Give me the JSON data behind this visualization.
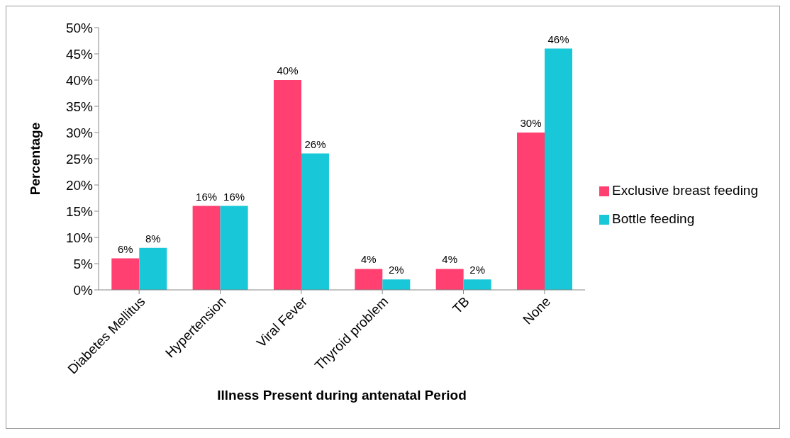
{
  "chart_data": {
    "type": "bar",
    "xlabel": "Illness Present during antenatal Period",
    "ylabel": "Percentage",
    "categories": [
      "Diabetes Mellitus",
      "Hypertension",
      "Viral Fever",
      "Thyroid problem",
      "TB",
      "None"
    ],
    "series": [
      {
        "name": "Exclusive breast feeding",
        "color": "#ff4070",
        "values": [
          6,
          16,
          40,
          4,
          4,
          30
        ],
        "value_labels": [
          "6%",
          "16%",
          "40%",
          "4%",
          "4%",
          "30%"
        ]
      },
      {
        "name": "Bottle feeding",
        "color": "#18c8d8",
        "values": [
          8,
          16,
          26,
          2,
          2,
          46
        ],
        "value_labels": [
          "8%",
          "16%",
          "26%",
          "2%",
          "2%",
          "46%"
        ]
      }
    ],
    "ylim": [
      0,
      50
    ],
    "yticks": [
      {
        "value": 0,
        "label": "0%"
      },
      {
        "value": 5,
        "label": "5%"
      },
      {
        "value": 10,
        "label": "10%"
      },
      {
        "value": 15,
        "label": "15%"
      },
      {
        "value": 20,
        "label": "20%"
      },
      {
        "value": 25,
        "label": "25%"
      },
      {
        "value": 30,
        "label": "30%"
      },
      {
        "value": 35,
        "label": "35%"
      },
      {
        "value": 40,
        "label": "40%"
      },
      {
        "value": 45,
        "label": "45%"
      },
      {
        "value": 50,
        "label": "50%"
      }
    ],
    "legend": "right"
  }
}
